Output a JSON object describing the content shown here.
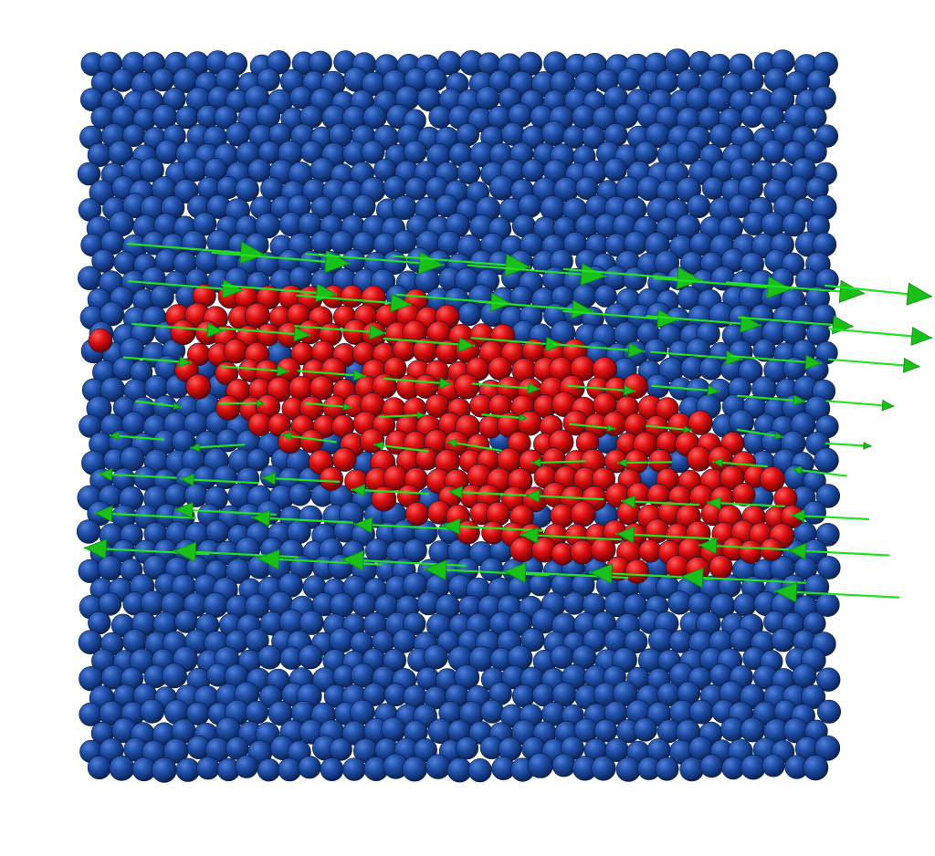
{
  "scene": {
    "background_color": "#ffffff",
    "matrix_particle_color": "#1f4fa8",
    "inclusion_particle_color": "#e01010",
    "vector_color": "#22e022",
    "vector_head_color": "#18c018",
    "flow_description": "",
    "objects": [
      {
        "name": "particle-matrix",
        "kind": "blue-spheres"
      },
      {
        "name": "particle-inclusion",
        "kind": "red-spheres"
      },
      {
        "name": "velocity-vectors",
        "kind": "green-arrows"
      }
    ]
  }
}
